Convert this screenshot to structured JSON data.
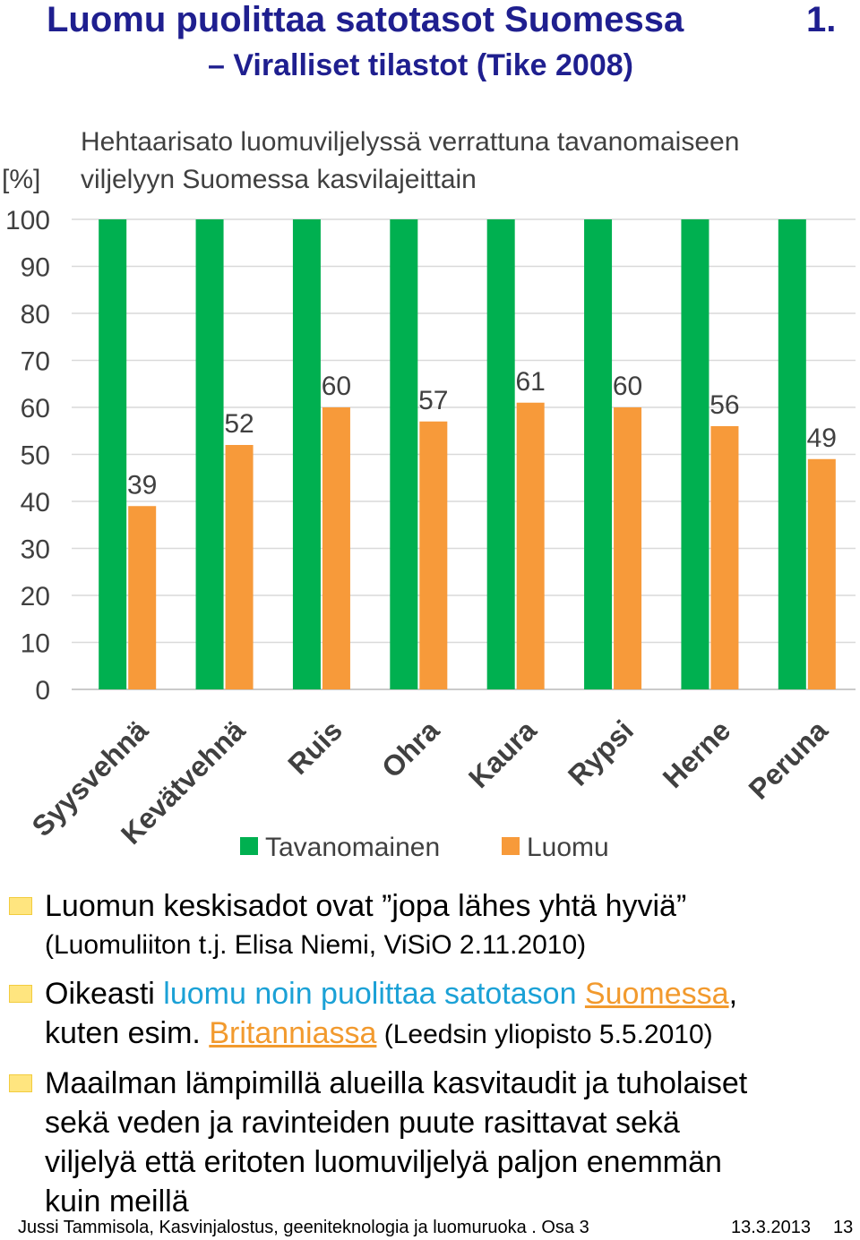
{
  "slide": {
    "title_line1": "Luomu puolittaa satotasot Suomessa",
    "title_number": "1.",
    "title_line2": "– Viralliset tilastot (Tike 2008)"
  },
  "chart_data": {
    "type": "bar",
    "title_line1": "Hehtaarisato luomuviljelyssä verrattuna tavanomaiseen",
    "title_line2": "viljelyyn Suomessa kasvilajeittain",
    "ylabel": "[%]",
    "ylim": [
      0,
      100
    ],
    "yticks": [
      "0",
      "10",
      "20",
      "30",
      "40",
      "50",
      "60",
      "70",
      "80",
      "90",
      "100"
    ],
    "categories": [
      "Syysvehnä",
      "Kevätvehnä",
      "Ruis",
      "Ohra",
      "Kaura",
      "Rypsi",
      "Herne",
      "Peruna"
    ],
    "series": [
      {
        "name": "Tavanomainen",
        "color": "#00B050",
        "values": [
          100,
          100,
          100,
          100,
          100,
          100,
          100,
          100
        ],
        "labels": false
      },
      {
        "name": "Luomu",
        "color": "#F79A3A",
        "values": [
          39,
          52,
          60,
          57,
          61,
          60,
          56,
          49
        ],
        "labels": true
      }
    ],
    "legend": "bottom",
    "grid": true
  },
  "bullets": {
    "b1_text": "Luomun keskisadot ovat ”jopa lähes yhtä hyviä”",
    "b1_source": "(Luomuliiton t.j. Elisa Niemi, ViSiO 2.11.2010)",
    "b2_a": "Oikeasti ",
    "b2_b": "luomu noin puolittaa satotason ",
    "b2_link1": "Suomessa",
    "b2_c": ",",
    "b2_d": "kuten esim. ",
    "b2_link2": "Britanniassa",
    "b2_source": " (Leedsin yliopisto 5.5.2010)",
    "b3_line1": "Maailman lämpimillä alueilla kasvitaudit ja tuholaiset",
    "b3_line2": "sekä veden ja ravinteiden puute rasittavat sekä",
    "b3_line3": "viljelyä että eritoten luomuviljelyä paljon enemmän",
    "b3_line4": "kuin meillä"
  },
  "footer": {
    "author": "Jussi Tammisola, Kasvinjalostus, geeniteknologia ja luomuruoka . Osa 3",
    "date": "13.3.2013",
    "page": "13"
  }
}
